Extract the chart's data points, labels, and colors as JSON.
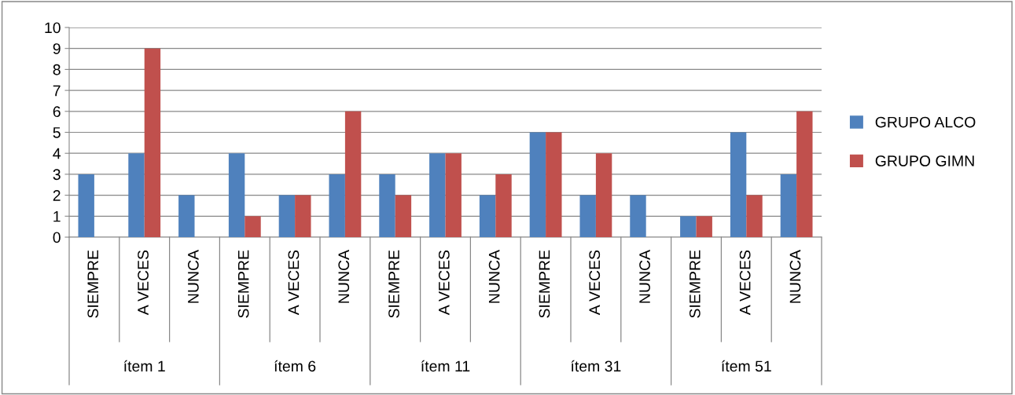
{
  "chart_data": {
    "type": "bar",
    "categories": [
      "SIEMPRE",
      "A VECES",
      "NUNCA",
      "SIEMPRE",
      "A VECES",
      "NUNCA",
      "SIEMPRE",
      "A VECES",
      "NUNCA",
      "SIEMPRE",
      "A VECES",
      "NUNCA",
      "SIEMPRE",
      "A VECES",
      "NUNCA"
    ],
    "series": [
      {
        "name": "GRUPO ALCO",
        "color": "#4f81bd",
        "values": [
          3,
          4,
          2,
          4,
          2,
          3,
          3,
          4,
          2,
          5,
          2,
          2,
          1,
          5,
          3
        ]
      },
      {
        "name": "GRUPO GIMN",
        "color": "#c0504d",
        "values": [
          0,
          9,
          0,
          1,
          2,
          6,
          2,
          4,
          3,
          5,
          4,
          0,
          1,
          2,
          6
        ]
      }
    ],
    "annotations": [
      "ítem 1",
      "ítem 6",
      "ítem 11",
      "ítem 31",
      "ítem 51"
    ],
    "ylim": [
      0,
      10
    ],
    "yticks": [
      0,
      1,
      2,
      3,
      4,
      5,
      6,
      7,
      8,
      9,
      10
    ],
    "grid": "y",
    "legend": "right"
  }
}
